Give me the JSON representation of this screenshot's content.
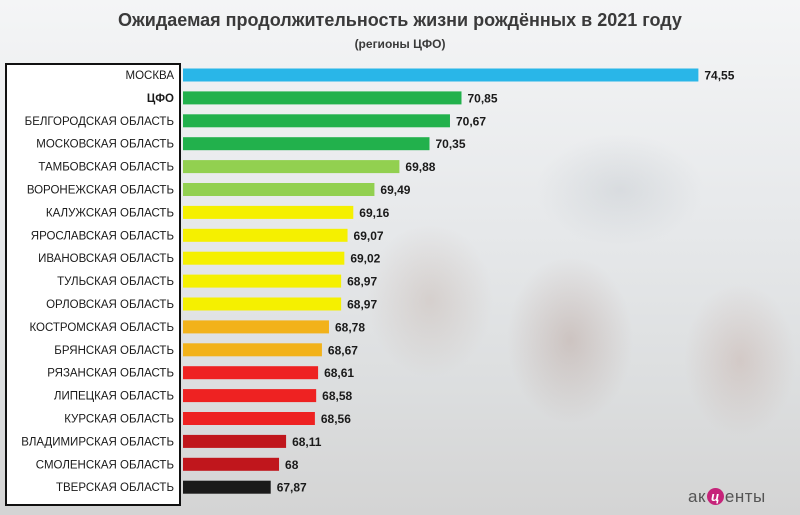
{
  "chart_data": {
    "type": "bar",
    "orientation": "horizontal",
    "title": "Ожидаемая продолжительность жизни рождённых в 2021 году",
    "subtitle": "(регионы ЦФО)",
    "xlim": [
      66.5,
      75.2
    ],
    "grid": false,
    "legend": "none",
    "categories": [
      "МОСКВА",
      "ЦФО",
      "БЕЛГОРОДСКАЯ ОБЛАСТЬ",
      "МОСКОВСКАЯ ОБЛАСТЬ",
      "ТАМБОВСКАЯ ОБЛАСТЬ",
      "ВОРОНЕЖСКАЯ ОБЛАСТЬ",
      "КАЛУЖСКАЯ ОБЛАСТЬ",
      "ЯРОСЛАВСКАЯ ОБЛАСТЬ",
      "ИВАНОВСКАЯ ОБЛАСТЬ",
      "ТУЛЬСКАЯ ОБЛАСТЬ",
      "ОРЛОВСКАЯ ОБЛАСТЬ",
      "КОСТРОМСКАЯ ОБЛАСТЬ",
      "БРЯНСКАЯ ОБЛАСТЬ",
      "РЯЗАНСКАЯ ОБЛАСТЬ",
      "ЛИПЕЦКАЯ ОБЛАСТЬ",
      "КУРСКАЯ ОБЛАСТЬ",
      "ВЛАДИМИРСКАЯ ОБЛАСТЬ",
      "СМОЛЕНСКАЯ ОБЛАСТЬ",
      "ТВЕРСКАЯ ОБЛАСТЬ"
    ],
    "values": [
      74.55,
      70.85,
      70.67,
      70.35,
      69.88,
      69.49,
      69.16,
      69.07,
      69.02,
      68.97,
      68.97,
      68.78,
      68.67,
      68.61,
      68.58,
      68.56,
      68.11,
      68,
      67.87
    ],
    "value_labels": [
      "74,55",
      "70,85",
      "70,67",
      "70,35",
      "69,88",
      "69,49",
      "69,16",
      "69,07",
      "69,02",
      "68,97",
      "68,97",
      "68,78",
      "68,67",
      "68,61",
      "68,58",
      "68,56",
      "68,11",
      "68",
      "67,87"
    ],
    "colors": [
      "#29b6e8",
      "#22b14c",
      "#22b14c",
      "#22b14c",
      "#92d050",
      "#92d050",
      "#f5f000",
      "#f5f000",
      "#f5f000",
      "#f5f000",
      "#f5f000",
      "#f2b21a",
      "#f2b21a",
      "#ee2222",
      "#ee2222",
      "#ee2222",
      "#c0161c",
      "#c0161c",
      "#1a1a1a"
    ],
    "bold_categories": [
      "ЦФО"
    ]
  },
  "logo": {
    "left": "ак",
    "middle": "ц",
    "right": "енты"
  }
}
